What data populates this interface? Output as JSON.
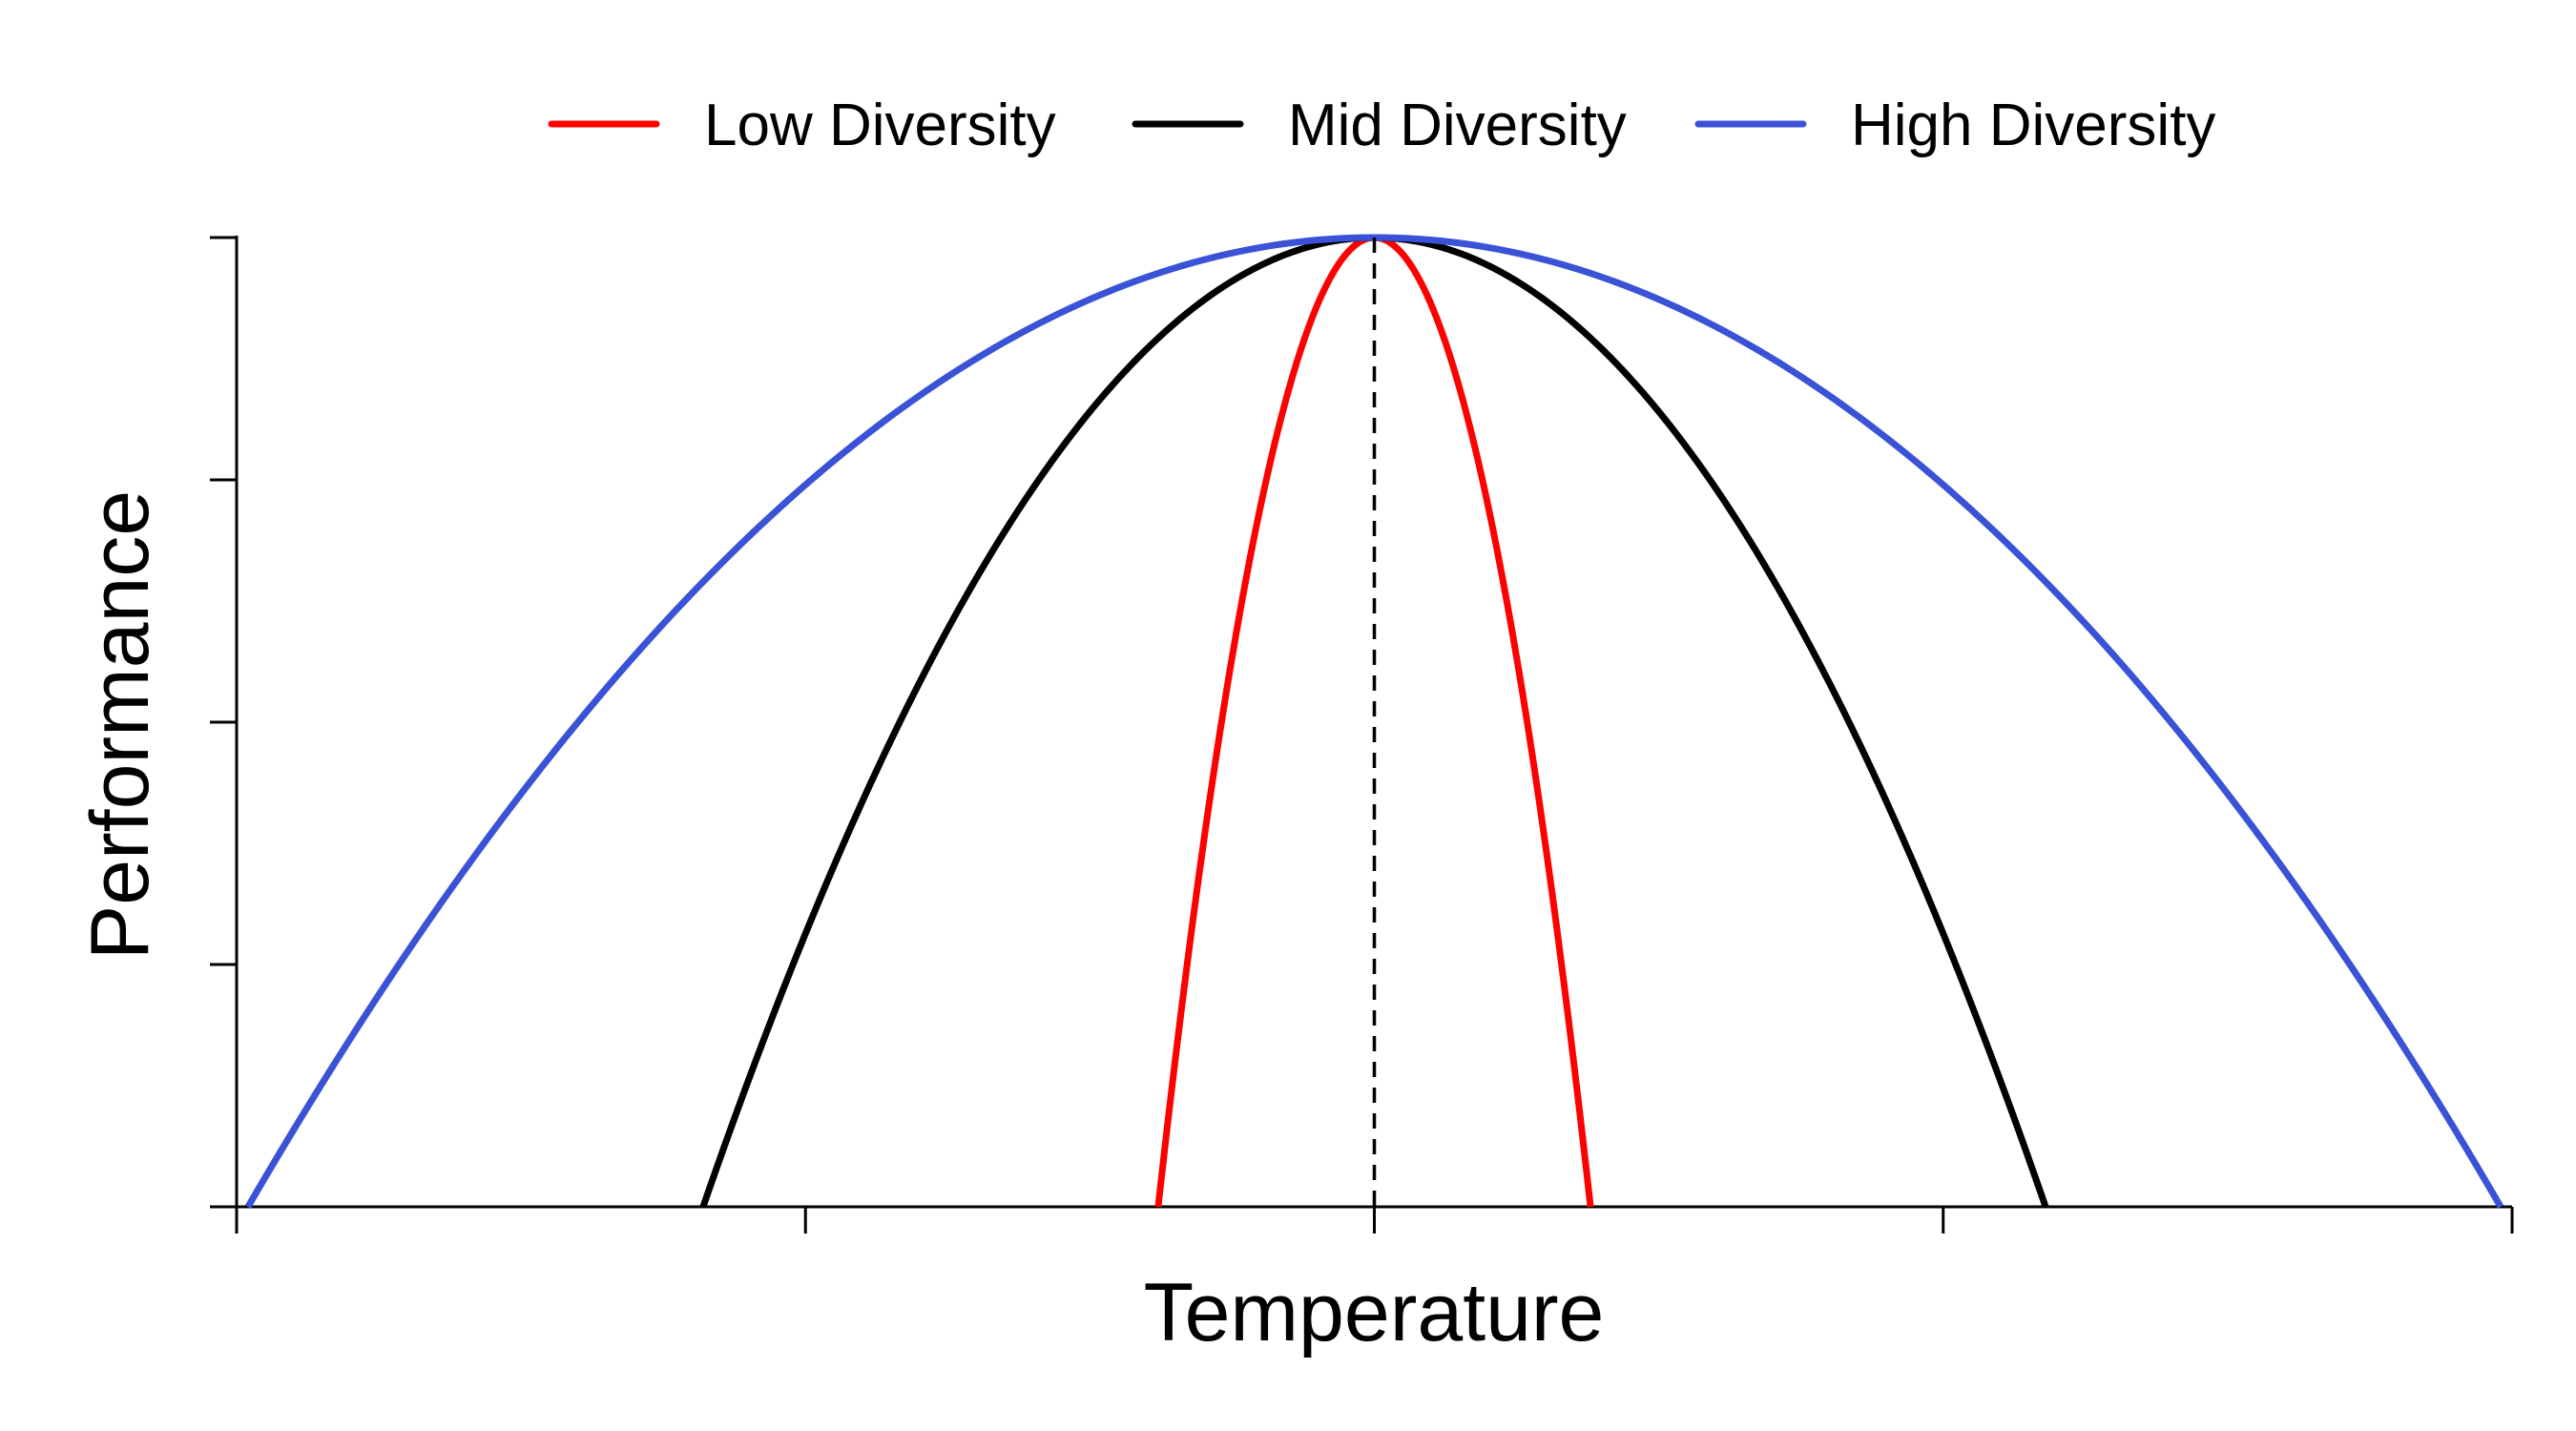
{
  "chart_data": {
    "type": "line",
    "xlabel": "Temperature",
    "ylabel": "Performance",
    "xlim": [
      -1,
      1
    ],
    "ylim": [
      0,
      1
    ],
    "x_ticks": [
      -1,
      -0.5,
      0,
      0.5,
      1
    ],
    "y_ticks": [
      0,
      0.25,
      0.5,
      0.75,
      1
    ],
    "tick_labels_shown": false,
    "grid": false,
    "legend_position": "top",
    "optimum_marker": {
      "x": 0,
      "style": "dashed",
      "color": "#000000"
    },
    "series": [
      {
        "name": "Low Diversity",
        "color": "#ff0000",
        "x_min": -0.19,
        "x_max": 0.19,
        "peak_x": 0,
        "peak_y": 1,
        "shape": "parabola"
      },
      {
        "name": "Mid Diversity",
        "color": "#000000",
        "x_min": -0.59,
        "x_max": 0.59,
        "peak_x": 0,
        "peak_y": 1,
        "shape": "parabola"
      },
      {
        "name": "High Diversity",
        "color": "#3a52d6",
        "x_min": -0.99,
        "x_max": 0.99,
        "peak_x": 0,
        "peak_y": 1,
        "shape": "parabola"
      }
    ]
  }
}
